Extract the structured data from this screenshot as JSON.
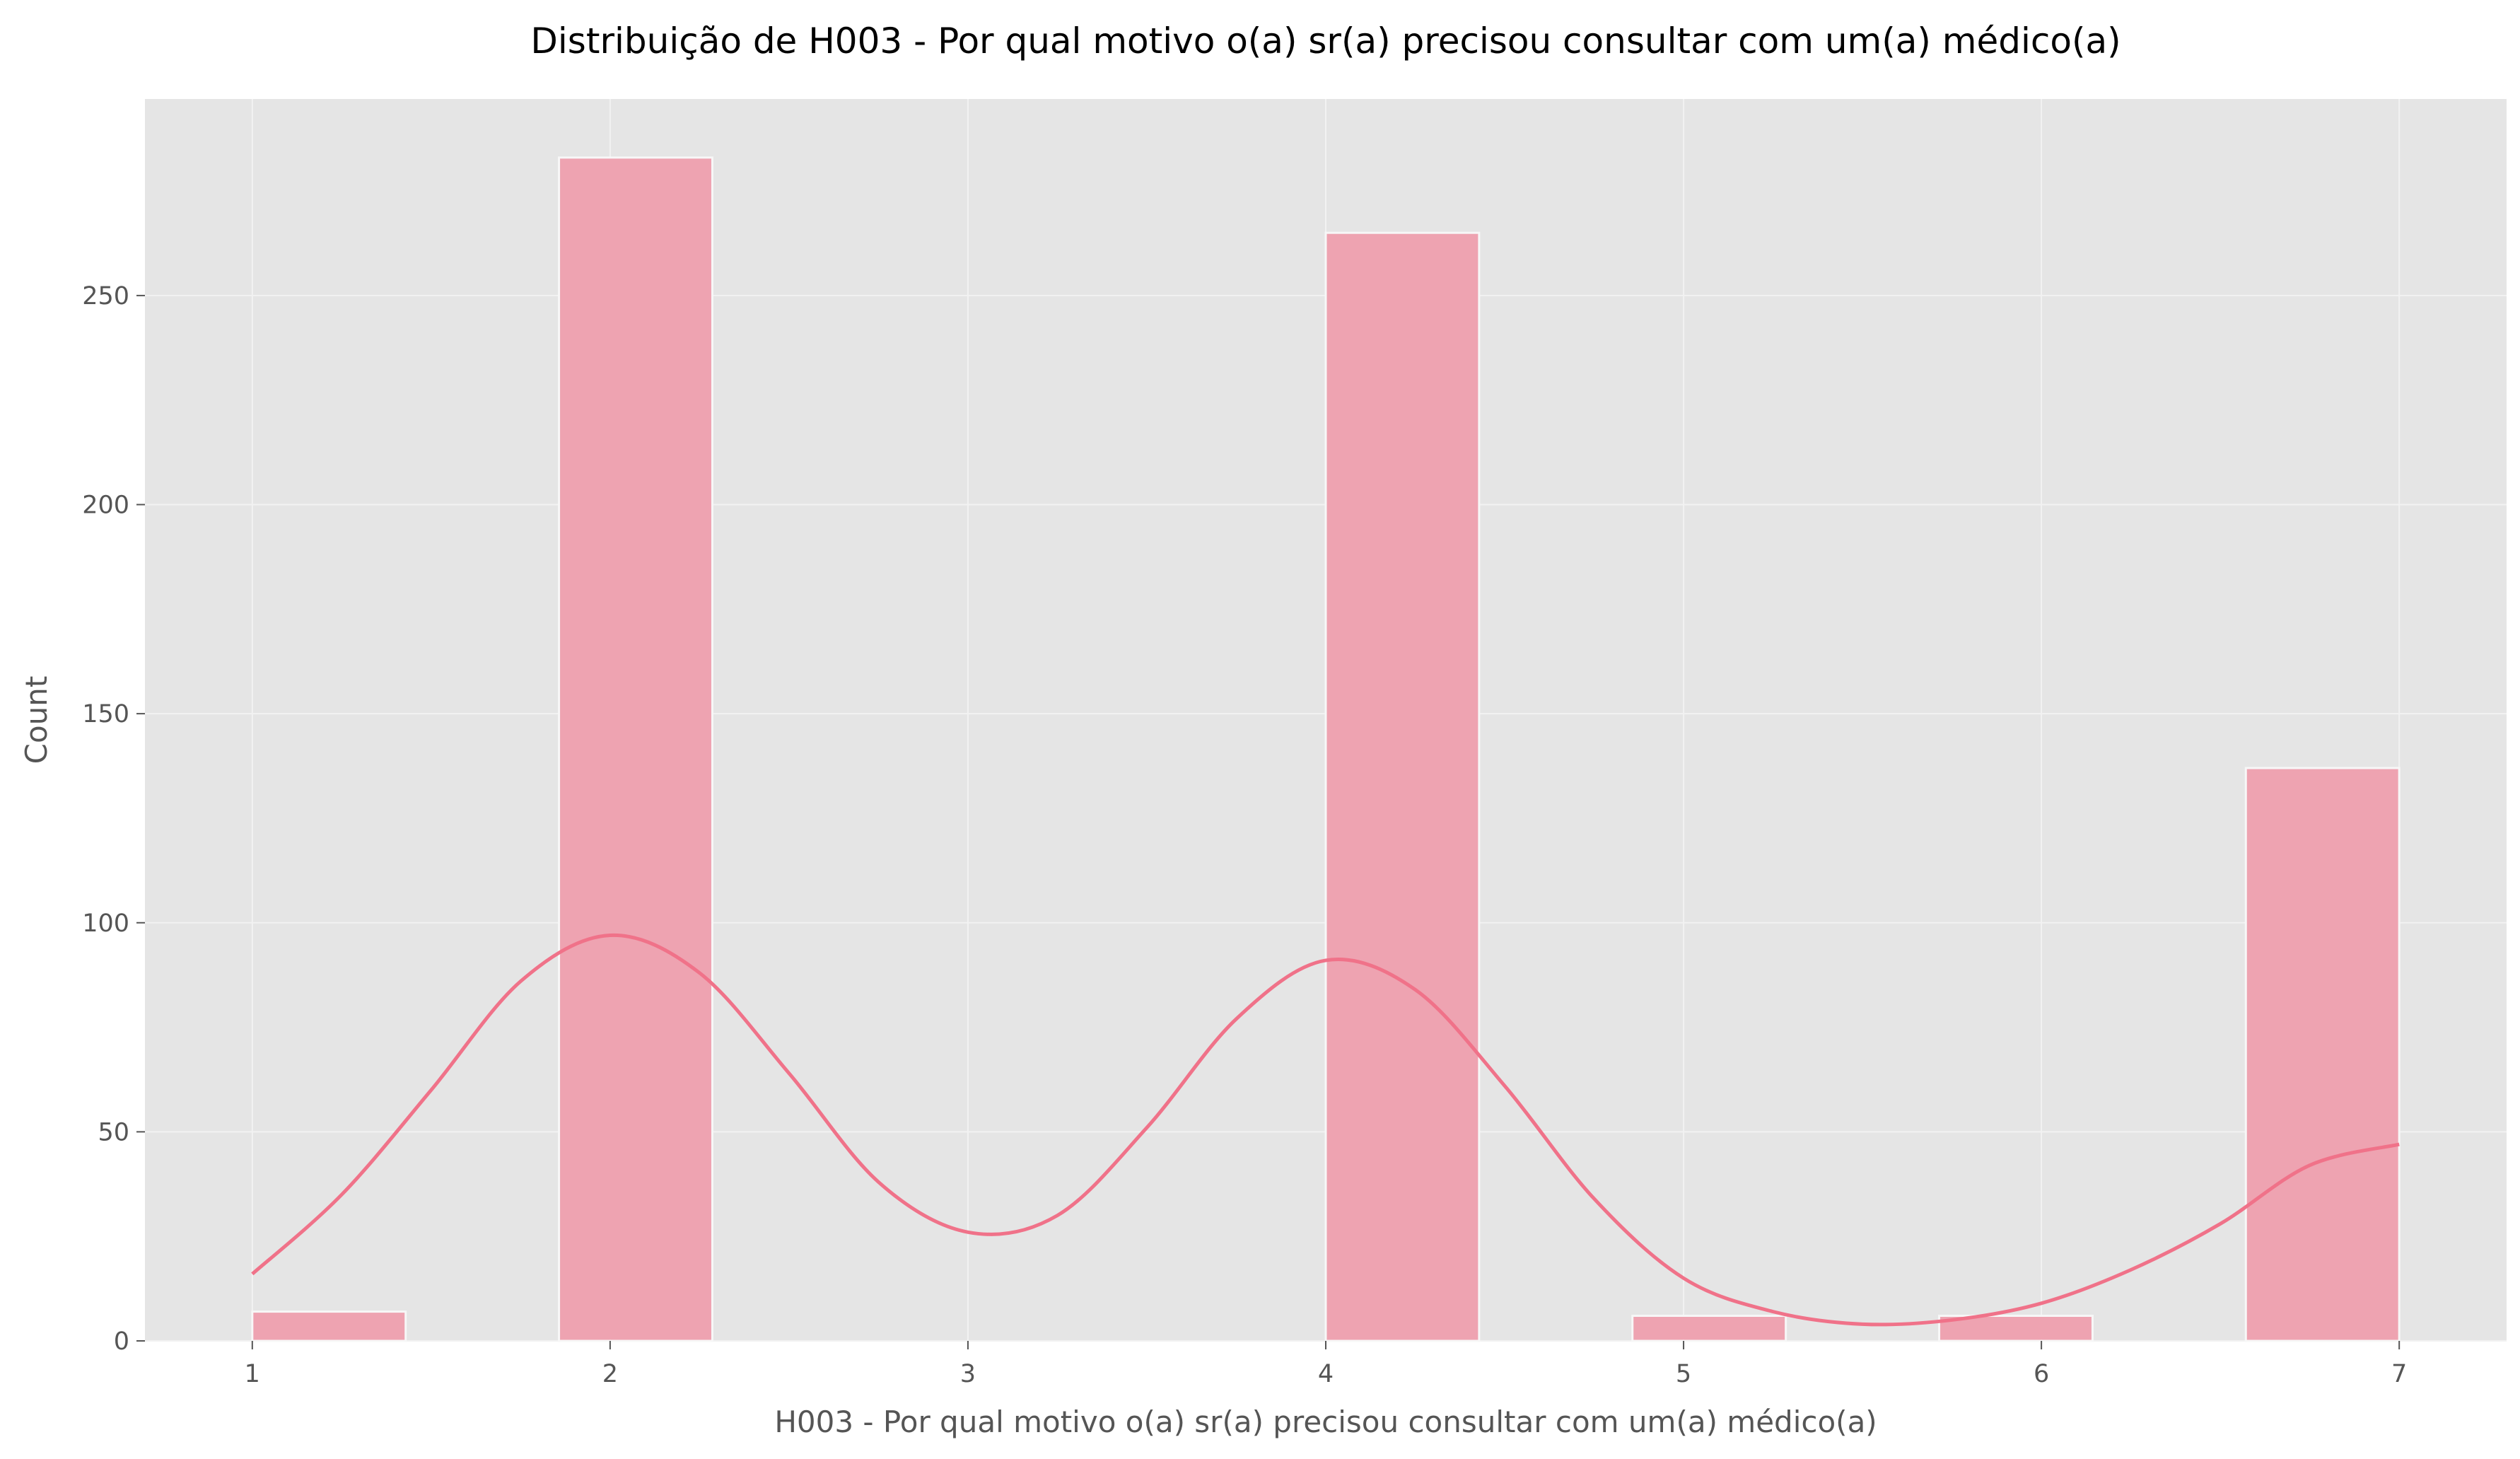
{
  "chart_data": {
    "type": "bar",
    "title": "Distribuição de H003 - Por qual motivo o(a) sr(a) precisou consultar com um(a) médico(a)",
    "xlabel": "H003 - Por qual motivo o(a) sr(a) precisou consultar com um(a) médico(a)",
    "ylabel": "Count",
    "xlim": [
      0.7,
      7.3
    ],
    "ylim": [
      0,
      297
    ],
    "xticks": [
      1,
      2,
      3,
      4,
      5,
      6,
      7
    ],
    "yticks": [
      0,
      50,
      100,
      150,
      200,
      250
    ],
    "grid": true,
    "bins": [
      {
        "x0": 1.0,
        "x1": 1.4286,
        "count": 7
      },
      {
        "x0": 1.8571,
        "x1": 2.2857,
        "count": 283
      },
      {
        "x0": 4.0,
        "x1": 4.4286,
        "count": 265
      },
      {
        "x0": 4.8571,
        "x1": 5.2857,
        "count": 6
      },
      {
        "x0": 5.7143,
        "x1": 6.1429,
        "count": 6
      },
      {
        "x0": 6.5714,
        "x1": 7.0,
        "count": 137
      }
    ],
    "kde": {
      "x": [
        1.0,
        1.25,
        1.5,
        1.75,
        2.0,
        2.25,
        2.5,
        2.75,
        3.0,
        3.25,
        3.5,
        3.75,
        4.0,
        4.25,
        4.5,
        4.75,
        5.0,
        5.25,
        5.5,
        5.75,
        6.0,
        6.25,
        6.5,
        6.75,
        7.0
      ],
      "y": [
        16,
        35,
        60,
        86,
        97,
        88,
        64,
        38,
        26,
        30,
        51,
        77,
        91,
        84,
        61,
        34,
        15,
        7,
        4,
        5,
        9,
        17,
        28,
        42,
        47
      ]
    },
    "colors": {
      "bar_fill": "#eea3b1",
      "bar_edge": "#f7f7f7",
      "kde_line": "#f07289",
      "plot_background": "#e5e5e5",
      "grid": "#f2f2f2"
    }
  }
}
